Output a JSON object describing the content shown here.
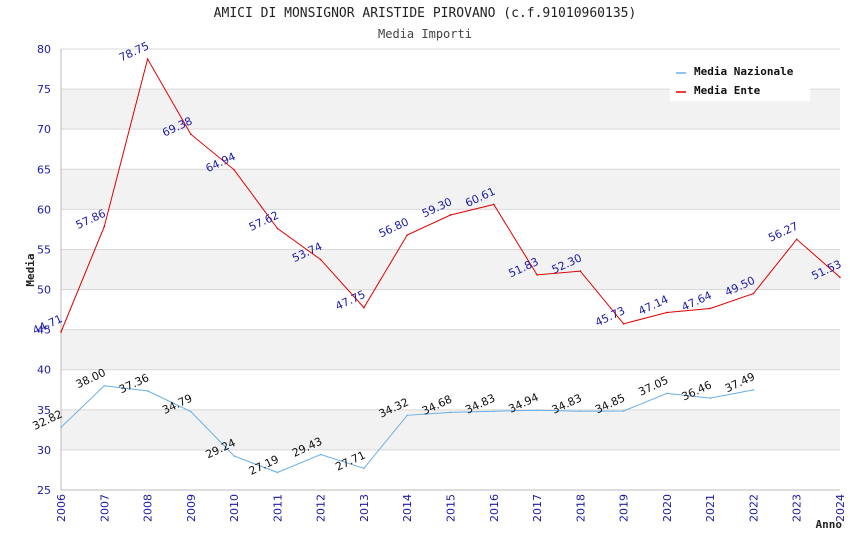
{
  "chart_data": {
    "type": "line",
    "title": "AMICI DI MONSIGNOR ARISTIDE PIROVANO (c.f.91010960135)",
    "subtitle": "Media Importi",
    "xlabel": "Anno",
    "ylabel": "Media",
    "ylim": [
      25,
      80
    ],
    "yticks": [
      25,
      30,
      35,
      40,
      45,
      50,
      55,
      60,
      65,
      70,
      75,
      80
    ],
    "x": [
      "2006",
      "2007",
      "2008",
      "2009",
      "2010",
      "2011",
      "2012",
      "2013",
      "2014",
      "2015",
      "2016",
      "2017",
      "2018",
      "2019",
      "2020",
      "2021",
      "2022",
      "2023",
      "2024"
    ],
    "grid": true,
    "legend_position": "top-right",
    "series": [
      {
        "name": "Media Nazionale",
        "color": "#6aaee6",
        "label_color": "#111111",
        "values": [
          32.82,
          38.0,
          37.36,
          34.79,
          29.24,
          27.19,
          29.43,
          27.71,
          34.32,
          34.68,
          34.83,
          34.94,
          34.83,
          34.85,
          37.05,
          36.46,
          37.49,
          null,
          null
        ],
        "labels": [
          "32.82",
          "38.00",
          "37.36",
          "34.79",
          "29.24",
          "27.19",
          "29.43",
          "27.71",
          "34.32",
          "34.68",
          "34.83",
          "34.94",
          "34.83",
          "34.85",
          "37.05",
          "36.46",
          "37.49",
          "",
          ""
        ]
      },
      {
        "name": "Media Ente",
        "color": "#e00000",
        "label_color": "#1a1aa6",
        "values": [
          44.71,
          57.86,
          78.75,
          69.38,
          64.94,
          57.62,
          53.74,
          47.75,
          56.8,
          59.3,
          60.61,
          51.83,
          52.3,
          45.73,
          47.14,
          47.64,
          49.5,
          56.27,
          51.53
        ],
        "labels": [
          "44.71",
          "57.86",
          "78.75",
          "69.38",
          "64.94",
          "57.62",
          "53.74",
          "47.75",
          "56.80",
          "59.30",
          "60.61",
          "51.83",
          "52.30",
          "45.73",
          "47.14",
          "47.64",
          "49.50",
          "56.27",
          "51.53"
        ]
      }
    ]
  }
}
